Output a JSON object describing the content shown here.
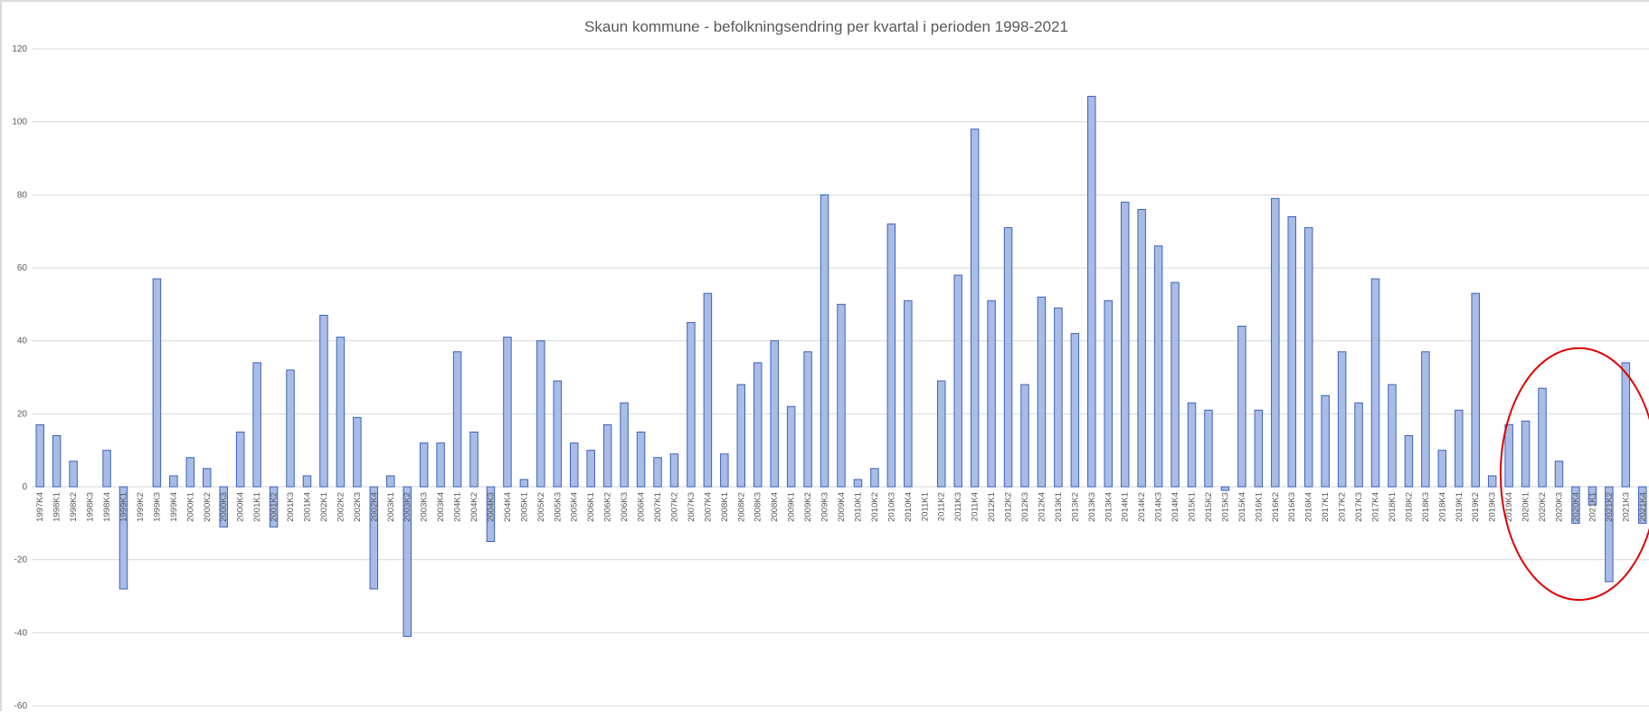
{
  "chart_data": {
    "type": "bar",
    "title": "Skaun kommune - befolkningsendring per kvartal i perioden 1998-2021",
    "xlabel": "",
    "ylabel": "",
    "ylim": [
      -60,
      120
    ],
    "yticks": [
      120,
      100,
      80,
      60,
      40,
      20,
      0,
      -20,
      -40,
      -60
    ],
    "grid": true,
    "legend": "none",
    "colors": {
      "bar_fill": "#a9bce6",
      "bar_stroke": "#3f62b8",
      "grid": "#d9d9d9",
      "axis_text": "#595959",
      "annotation": "#e00000"
    },
    "categories": [
      "1997K4",
      "1998K1",
      "1998K2",
      "1998K3",
      "1998K4",
      "1999K1",
      "1999K2",
      "1999K3",
      "1999K4",
      "2000K1",
      "2000K2",
      "2000K3",
      "2000K4",
      "2001K1",
      "2001K2",
      "2001K3",
      "2001K4",
      "2002K1",
      "2002K2",
      "2002K3",
      "2002K4",
      "2003K1",
      "2003K2",
      "2003K3",
      "2003K4",
      "2004K1",
      "2004K2",
      "2004K3",
      "2004K4",
      "2005K1",
      "2005K2",
      "2005K3",
      "2005K4",
      "2006K1",
      "2006K2",
      "2006K3",
      "2006K4",
      "2007K1",
      "2007K2",
      "2007K3",
      "2007K4",
      "2008K1",
      "2008K2",
      "2008K3",
      "2008K4",
      "2009K1",
      "2009K2",
      "2009K3",
      "2009K4",
      "2010K1",
      "2010K2",
      "2010K3",
      "2010K4",
      "2011K1",
      "2011K2",
      "2011K3",
      "2011K4",
      "2012K1",
      "2012K2",
      "2012K3",
      "2012K4",
      "2013K1",
      "2013K2",
      "2013K3",
      "2013K4",
      "2014K1",
      "2014K2",
      "2014K3",
      "2014K4",
      "2015K1",
      "2015K2",
      "2015K3",
      "2015K4",
      "2016K1",
      "2016K2",
      "2016K3",
      "2016K4",
      "2017K1",
      "2017K2",
      "2017K3",
      "2017K4",
      "2018K1",
      "2018K2",
      "2018K3",
      "2018K4",
      "2019K1",
      "2019K2",
      "2019K3",
      "2019K4",
      "2020K1",
      "2020K2",
      "2020K3",
      "2020K4",
      "2021K1",
      "2021K2",
      "2021K3",
      "2021K4"
    ],
    "values": [
      17,
      14,
      7,
      0,
      10,
      -28,
      0,
      57,
      3,
      8,
      5,
      -11,
      15,
      34,
      -11,
      32,
      3,
      47,
      41,
      19,
      -28,
      3,
      -41,
      12,
      12,
      37,
      15,
      -15,
      41,
      2,
      40,
      29,
      12,
      10,
      17,
      23,
      15,
      8,
      9,
      45,
      53,
      9,
      28,
      34,
      40,
      22,
      37,
      80,
      50,
      2,
      5,
      72,
      51,
      0,
      29,
      58,
      98,
      51,
      71,
      28,
      52,
      49,
      42,
      107,
      51,
      78,
      76,
      66,
      56,
      23,
      21,
      -1,
      44,
      21,
      79,
      74,
      71,
      25,
      37,
      23,
      57,
      28,
      14,
      37,
      10,
      21,
      53,
      3,
      17,
      18,
      27,
      7,
      -10,
      -5,
      -26,
      34,
      -10
    ],
    "annotations": [
      {
        "type": "ellipse",
        "color": "#e00000",
        "note": ""
      }
    ]
  }
}
